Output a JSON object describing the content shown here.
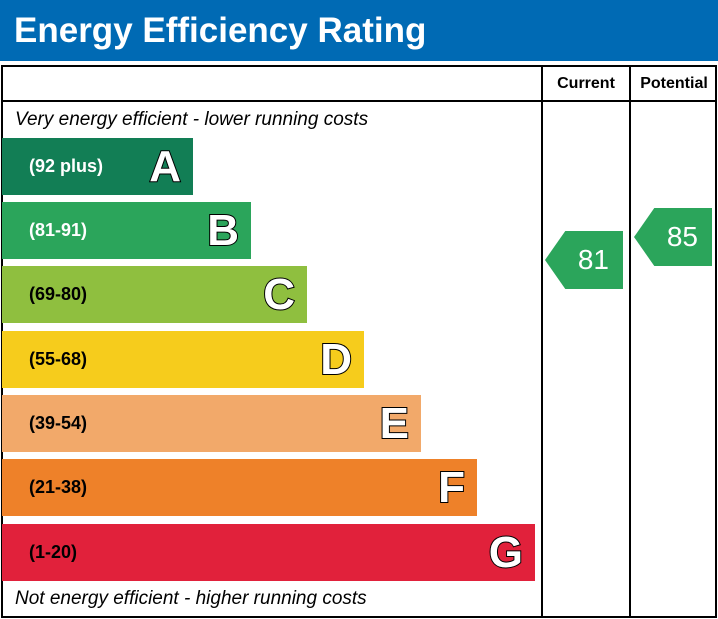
{
  "chart_data": {
    "type": "bar",
    "title": "Energy Efficiency Rating",
    "columns": [
      "Current",
      "Potential"
    ],
    "top_note": "Very energy efficient - lower running costs",
    "bottom_note": "Not energy efficient - higher running costs",
    "bands": [
      {
        "letter": "A",
        "range": "(92 plus)",
        "color": "#127e55",
        "text_color": "#ffffff"
      },
      {
        "letter": "B",
        "range": "(81-91)",
        "color": "#2ba55b",
        "text_color": "#ffffff"
      },
      {
        "letter": "C",
        "range": "(69-80)",
        "color": "#8fbf3f",
        "text_color": "#000000"
      },
      {
        "letter": "D",
        "range": "(55-68)",
        "color": "#f6cc1c",
        "text_color": "#000000"
      },
      {
        "letter": "E",
        "range": "(39-54)",
        "color": "#f2a96a",
        "text_color": "#000000"
      },
      {
        "letter": "F",
        "range": "(21-38)",
        "color": "#ee8129",
        "text_color": "#000000"
      },
      {
        "letter": "G",
        "range": "(1-20)",
        "color": "#e1213b",
        "text_color": "#000000"
      }
    ],
    "current": {
      "value": "81",
      "band": "B",
      "color": "#2ba55b"
    },
    "potential": {
      "value": "85",
      "band": "B",
      "color": "#2ba55b"
    }
  }
}
